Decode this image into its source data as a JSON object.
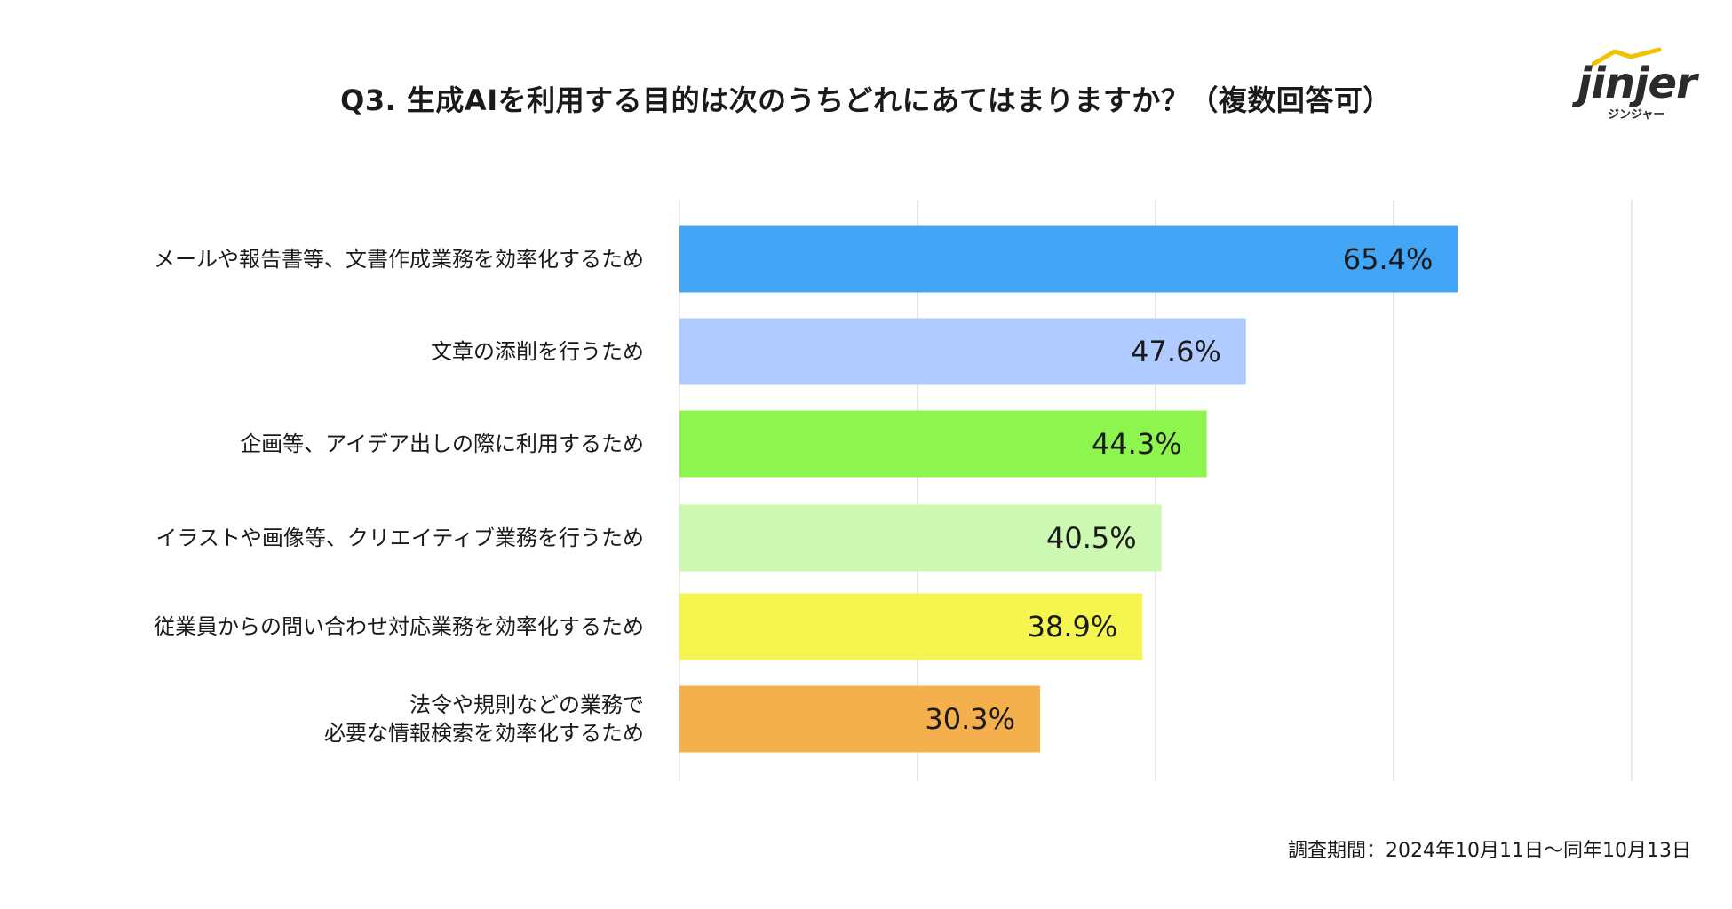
{
  "chart_data": {
    "type": "bar",
    "orientation": "horizontal",
    "title": "Q3. 生成AIを利用する目的は次のうちどれにあてはまりますか？（複数回答可）",
    "categories": [
      [
        "メールや報告書等、文書作成業務を効率化するため"
      ],
      [
        "文章の添削を行うため"
      ],
      [
        "企画等、アイデア出しの際に利用するため"
      ],
      [
        "イラストや画像等、クリエイティブ業務を行うため"
      ],
      [
        "従業員からの問い合わせ対応業務を効率化するため"
      ],
      [
        "法令や規則などの業務で",
        "必要な情報検索を効率化するため"
      ]
    ],
    "values": [
      65.4,
      47.6,
      44.3,
      40.5,
      38.9,
      30.3
    ],
    "value_labels": [
      "65.4%",
      "47.6%",
      "44.3%",
      "40.5%",
      "38.9%",
      "30.3%"
    ],
    "colors": [
      "#42a5f5",
      "#b0cbff",
      "#8ef54e",
      "#cdf8b2",
      "#f4f54e",
      "#f5b04e"
    ],
    "xlim": [
      0,
      80
    ],
    "x_gridlines": [
      0,
      20,
      40,
      60,
      80
    ],
    "grid": true,
    "legend": "none"
  },
  "logo": {
    "word": "jinjer",
    "sub": "ジンジャー"
  },
  "footer": {
    "survey_period": "調査期間：2024年10月11日〜同年10月13日"
  }
}
